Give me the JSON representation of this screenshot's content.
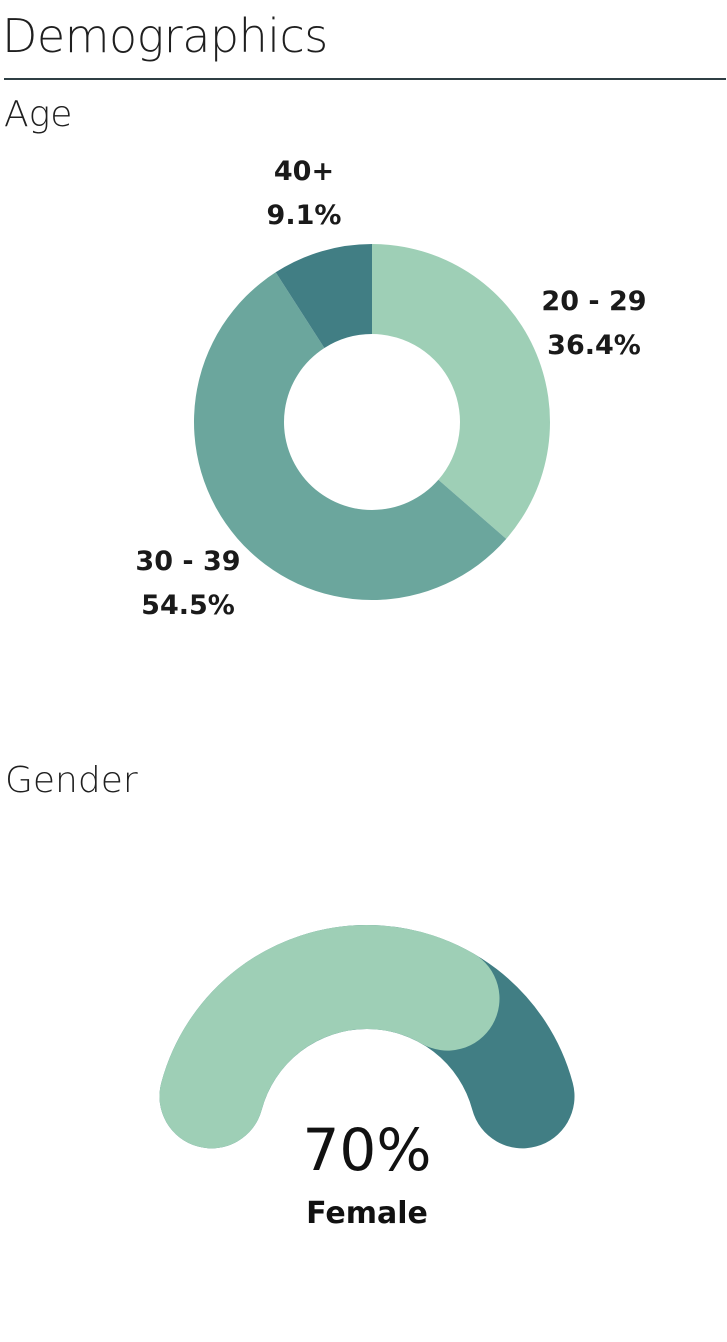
{
  "header": {
    "title": "Demographics"
  },
  "chart_data": [
    {
      "type": "pie",
      "variant": "donut",
      "title": "Age",
      "categories": [
        "20 - 29",
        "30 - 39",
        "40+"
      ],
      "values": [
        36.4,
        54.5,
        9.1
      ],
      "value_labels": [
        "36.4%",
        "54.5%",
        "9.1%"
      ],
      "colors": [
        "#9ecfb6",
        "#6ba69d",
        "#417e84"
      ],
      "legend": "none"
    },
    {
      "type": "gauge",
      "title": "Gender",
      "value": 70,
      "max": 100,
      "value_label": "70%",
      "category": "Female",
      "colors": {
        "fill": "#9ecfb6",
        "track": "#417e84"
      }
    }
  ]
}
